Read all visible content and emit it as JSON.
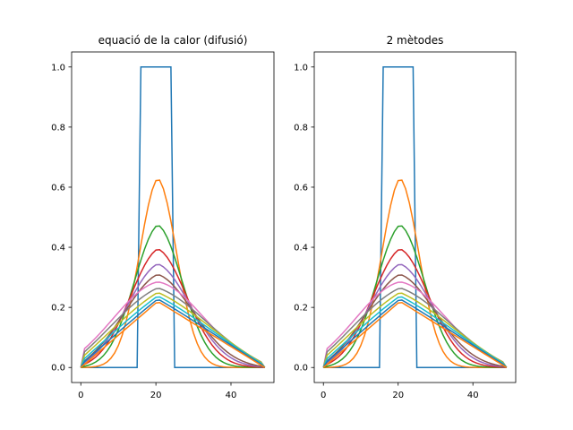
{
  "chart_data": [
    {
      "type": "line",
      "title": "equació de la calor (difusió)",
      "xlabel": "",
      "ylabel": "",
      "xlim": [
        -2.45,
        51.45
      ],
      "ylim": [
        -0.05,
        1.05
      ],
      "xticks": [
        0,
        20,
        40
      ],
      "yticks": [
        0.0,
        0.2,
        0.4,
        0.6,
        0.8,
        1.0
      ],
      "grid": false,
      "legend": false,
      "x_range": [
        0,
        49
      ],
      "n_points": 50,
      "series_peaks": [
        1.0,
        0.63,
        0.475,
        0.395,
        0.345,
        0.31,
        0.285,
        0.265,
        0.25,
        0.238,
        0.228,
        0.22
      ],
      "series_colors": [
        "#1f77b4",
        "#ff7f0e",
        "#2ca02c",
        "#d62728",
        "#9467bd",
        "#8c564b",
        "#e377c2",
        "#7f7f7f",
        "#bcbd22",
        "#17becf",
        "#1f77b4",
        "#ff7f0e"
      ]
    },
    {
      "type": "line",
      "title": "2 mètodes",
      "xlabel": "",
      "ylabel": "",
      "xlim": [
        -2.45,
        51.45
      ],
      "ylim": [
        -0.05,
        1.05
      ],
      "xticks": [
        0,
        20,
        40
      ],
      "yticks": [
        0.0,
        0.2,
        0.4,
        0.6,
        0.8,
        1.0
      ],
      "grid": false,
      "legend": false,
      "x_range": [
        0,
        49
      ],
      "n_points": 50,
      "series_peaks": [
        1.0,
        0.63,
        0.475,
        0.395,
        0.345,
        0.31,
        0.285,
        0.265,
        0.25,
        0.238,
        0.228,
        0.22
      ],
      "series_colors": [
        "#1f77b4",
        "#ff7f0e",
        "#2ca02c",
        "#d62728",
        "#9467bd",
        "#8c564b",
        "#e377c2",
        "#7f7f7f",
        "#bcbd22",
        "#17becf",
        "#1f77b4",
        "#ff7f0e"
      ]
    }
  ]
}
